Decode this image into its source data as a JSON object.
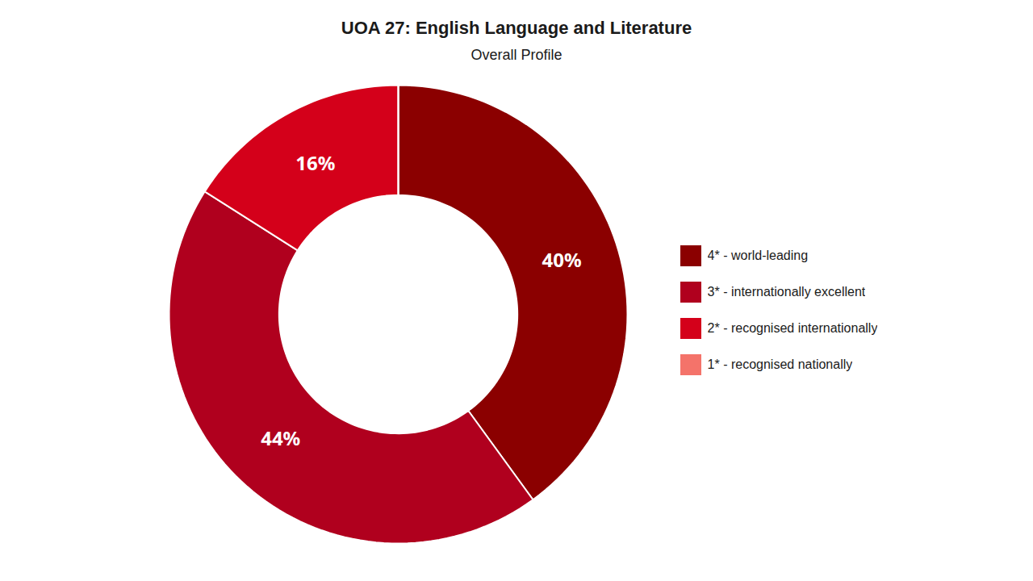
{
  "chart_data": {
    "type": "pie",
    "title": "UOA 27: English Language and Literature",
    "subtitle": "Overall Profile",
    "categories": [
      "4* - world-leading",
      "3* - internationally excellent",
      "2* - recognised internationally",
      "1* - recognised nationally"
    ],
    "values": [
      40,
      44,
      16,
      0.001
    ],
    "value_labels": [
      "40%",
      "44%",
      "16%",
      null
    ],
    "data_labels": true,
    "colors": [
      "#8B0000",
      "#B0001E",
      "#D4001A",
      "#F4736A"
    ],
    "legend": "right"
  }
}
